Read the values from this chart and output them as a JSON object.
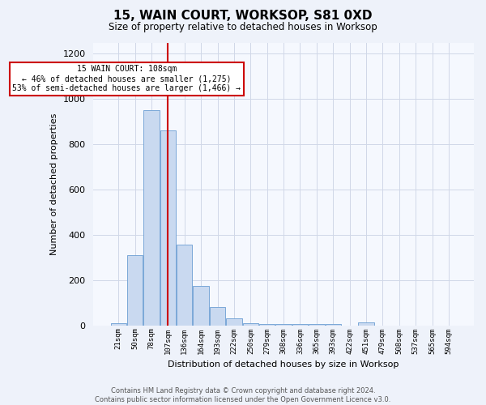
{
  "title": "15, WAIN COURT, WORKSOP, S81 0XD",
  "subtitle": "Size of property relative to detached houses in Worksop",
  "xlabel": "Distribution of detached houses by size in Worksop",
  "ylabel": "Number of detached properties",
  "bin_labels": [
    "21sqm",
    "50sqm",
    "78sqm",
    "107sqm",
    "136sqm",
    "164sqm",
    "193sqm",
    "222sqm",
    "250sqm",
    "279sqm",
    "308sqm",
    "336sqm",
    "365sqm",
    "393sqm",
    "422sqm",
    "451sqm",
    "479sqm",
    "508sqm",
    "537sqm",
    "565sqm",
    "594sqm"
  ],
  "bar_heights": [
    10,
    310,
    950,
    860,
    355,
    175,
    80,
    30,
    10,
    5,
    5,
    5,
    5,
    5,
    0,
    12,
    0,
    0,
    0,
    0,
    0
  ],
  "bar_color": "#c9d9f0",
  "bar_edge_color": "#7aa8d8",
  "annotation_box_text": "15 WAIN COURT: 108sqm\n← 46% of detached houses are smaller (1,275)\n53% of semi-detached houses are larger (1,466) →",
  "annotation_box_color": "#ffffff",
  "annotation_box_edge_color": "#cc0000",
  "annotation_line_color": "#cc0000",
  "ylim": [
    0,
    1250
  ],
  "yticks": [
    0,
    200,
    400,
    600,
    800,
    1000,
    1200
  ],
  "footer": "Contains HM Land Registry data © Crown copyright and database right 2024.\nContains public sector information licensed under the Open Government Licence v3.0.",
  "bg_color": "#eef2fa",
  "plot_bg_color": "#f5f8fe",
  "grid_color": "#d0d8e8"
}
